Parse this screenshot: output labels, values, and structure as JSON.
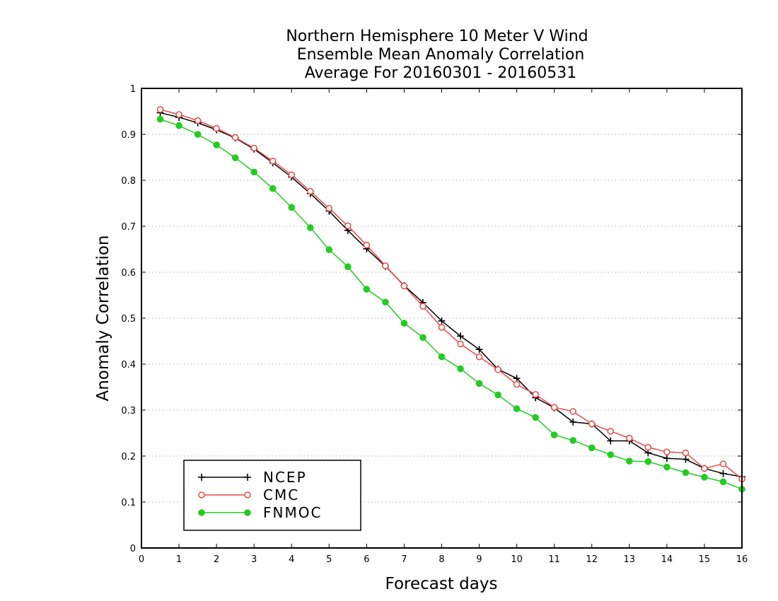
{
  "chart_data": {
    "type": "line",
    "title": [
      "Northern Hemisphere 10 Meter V Wind",
      "Ensemble Mean Anomaly Correlation",
      "Average For 20160301 - 20160531"
    ],
    "xlabel": "Forecast days",
    "ylabel": "Anomaly Correlation",
    "xlim": [
      0,
      16
    ],
    "ylim": [
      0,
      1
    ],
    "xticks": [
      "0",
      "1",
      "2",
      "3",
      "4",
      "5",
      "6",
      "7",
      "8",
      "9",
      "10",
      "11",
      "12",
      "13",
      "14",
      "15",
      "16"
    ],
    "yticks": [
      "0",
      "0.1",
      "0.2",
      "0.3",
      "0.4",
      "0.5",
      "0.6",
      "0.7",
      "0.8",
      "0.9",
      "1"
    ],
    "grid": "horizontal dotted",
    "legend_position": "bottom-left",
    "x": [
      0.5,
      1,
      1.5,
      2,
      2.5,
      3,
      3.5,
      4,
      4.5,
      5,
      5.5,
      6,
      6.5,
      7,
      7.5,
      8,
      8.5,
      9,
      9.5,
      10,
      10.5,
      11,
      11.5,
      12,
      12.5,
      13,
      13.5,
      14,
      14.5,
      15,
      15.5,
      16
    ],
    "series": [
      {
        "name": "NCEP",
        "color": "#000000",
        "marker": "plus",
        "values": [
          0.947,
          0.937,
          0.925,
          0.91,
          0.892,
          0.868,
          0.838,
          0.807,
          0.771,
          0.733,
          0.691,
          0.651,
          0.613,
          0.571,
          0.534,
          0.494,
          0.461,
          0.432,
          0.389,
          0.369,
          0.327,
          0.305,
          0.274,
          0.27,
          0.233,
          0.233,
          0.207,
          0.195,
          0.193,
          0.173,
          0.162,
          0.155
        ]
      },
      {
        "name": "CMC",
        "color": "#e84848",
        "marker": "open-circle",
        "values": [
          0.954,
          0.943,
          0.93,
          0.913,
          0.893,
          0.87,
          0.842,
          0.812,
          0.776,
          0.739,
          0.701,
          0.659,
          0.614,
          0.57,
          0.526,
          0.48,
          0.444,
          0.416,
          0.388,
          0.356,
          0.334,
          0.306,
          0.297,
          0.27,
          0.254,
          0.239,
          0.219,
          0.209,
          0.207,
          0.173,
          0.183,
          0.15
        ]
      },
      {
        "name": "FNMOC",
        "color": "#22cc22",
        "marker": "filled-circle",
        "values": [
          0.933,
          0.919,
          0.9,
          0.877,
          0.849,
          0.818,
          0.782,
          0.741,
          0.697,
          0.649,
          0.612,
          0.563,
          0.535,
          0.489,
          0.458,
          0.416,
          0.39,
          0.358,
          0.333,
          0.303,
          0.284,
          0.246,
          0.234,
          0.218,
          0.203,
          0.189,
          0.188,
          0.176,
          0.164,
          0.154,
          0.144,
          0.128
        ]
      }
    ]
  }
}
